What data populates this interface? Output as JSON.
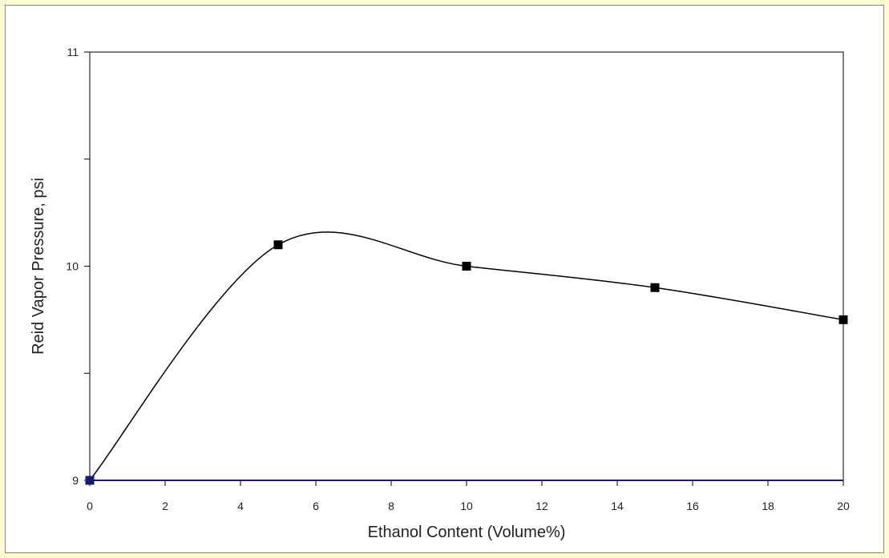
{
  "chart_data": {
    "type": "line",
    "title": "",
    "xlabel": "Ethanol Content (Volume%)",
    "ylabel": "Reid Vapor Pressure, psi",
    "xlim": [
      0,
      20
    ],
    "ylim": [
      9,
      11
    ],
    "x_ticks": [
      0,
      2,
      4,
      6,
      8,
      10,
      12,
      14,
      16,
      18,
      20
    ],
    "y_tick_labels": [
      9,
      10,
      11
    ],
    "y_minor_ticks": [
      9.5,
      10.5
    ],
    "grid": false,
    "legend": "none",
    "series": [
      {
        "x": [
          0,
          5,
          10,
          15,
          20
        ],
        "y": [
          9.0,
          10.1,
          10.0,
          9.9,
          9.75
        ],
        "line_color": "#000000",
        "marker": "square",
        "marker_color": "#000000",
        "first_marker_color": "#1a1a6e"
      }
    ],
    "x_axis_color": "#1a1a8c",
    "frame_color": "#000000"
  }
}
